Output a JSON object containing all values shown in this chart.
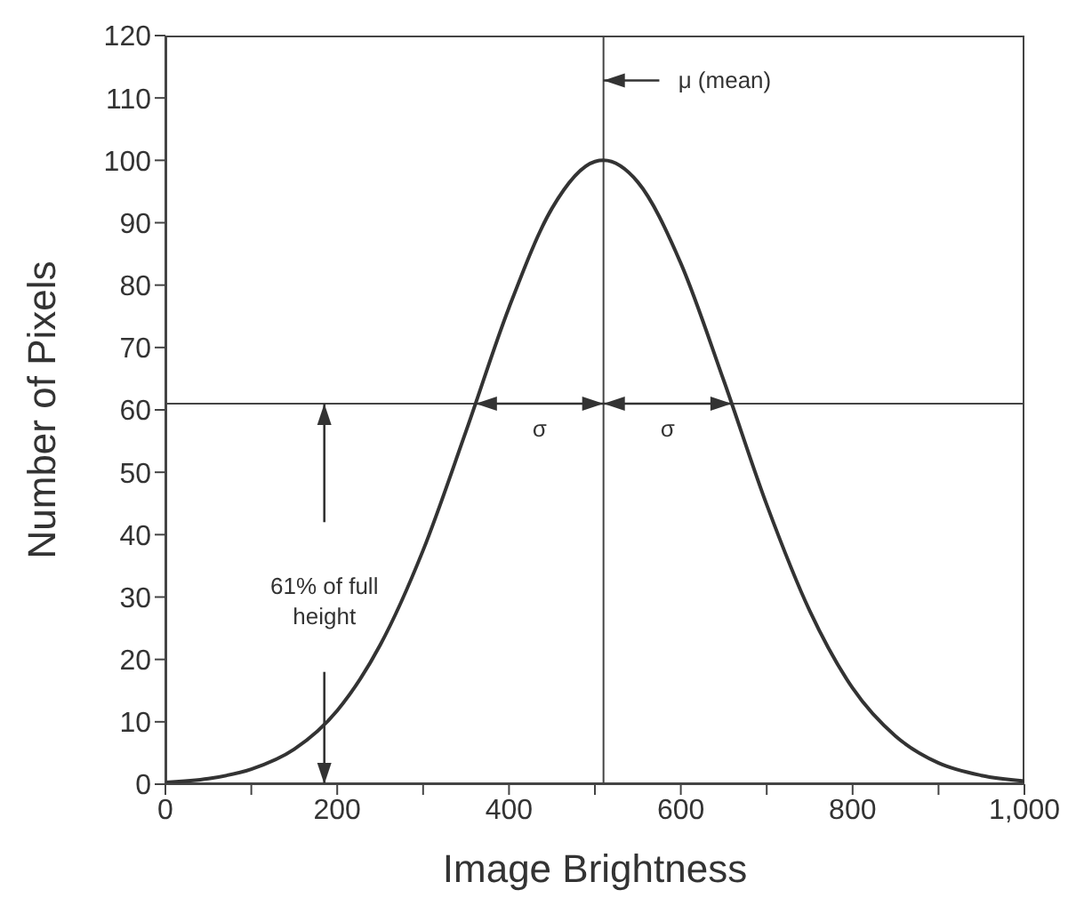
{
  "chart_data": {
    "type": "line",
    "xlabel": "Image Brightness",
    "ylabel": "Number of Pixels",
    "x": [
      0,
      50,
      100,
      150,
      200,
      250,
      300,
      350,
      400,
      450,
      500,
      510,
      550,
      600,
      650,
      700,
      750,
      800,
      850,
      900,
      950,
      1000
    ],
    "series": [
      {
        "color": "#333333",
        "values": [
          0.3,
          0.9,
          2.4,
          5.6,
          11.8,
          22.3,
          37.5,
          56.6,
          76.4,
          92.3,
          99.8,
          100,
          96.5,
          83.5,
          64.7,
          44.8,
          27.8,
          15.4,
          7.7,
          3.4,
          1.4,
          0.5
        ]
      }
    ],
    "xlim": [
      0,
      1000
    ],
    "xticks": [
      0,
      {
        "value": 100,
        "label": null
      },
      200,
      {
        "value": 300,
        "label": null
      },
      400,
      {
        "value": 500,
        "label": null
      },
      600,
      {
        "value": 700,
        "label": null
      },
      800,
      {
        "value": 900,
        "label": null
      },
      {
        "value": 1000,
        "label": "1,000"
      }
    ],
    "ylim": [
      0,
      120
    ],
    "yticks": [
      0,
      10,
      20,
      30,
      40,
      50,
      60,
      70,
      80,
      90,
      100,
      110,
      120
    ],
    "ref_lines": [
      {
        "axis": "x",
        "value": 510
      },
      {
        "axis": "y",
        "value": 61
      }
    ],
    "annotations": [
      "μ (mean)",
      "σ",
      "σ",
      "61% of full height"
    ],
    "grid": false,
    "legend": false,
    "marker": "none",
    "line_style": "solid"
  }
}
